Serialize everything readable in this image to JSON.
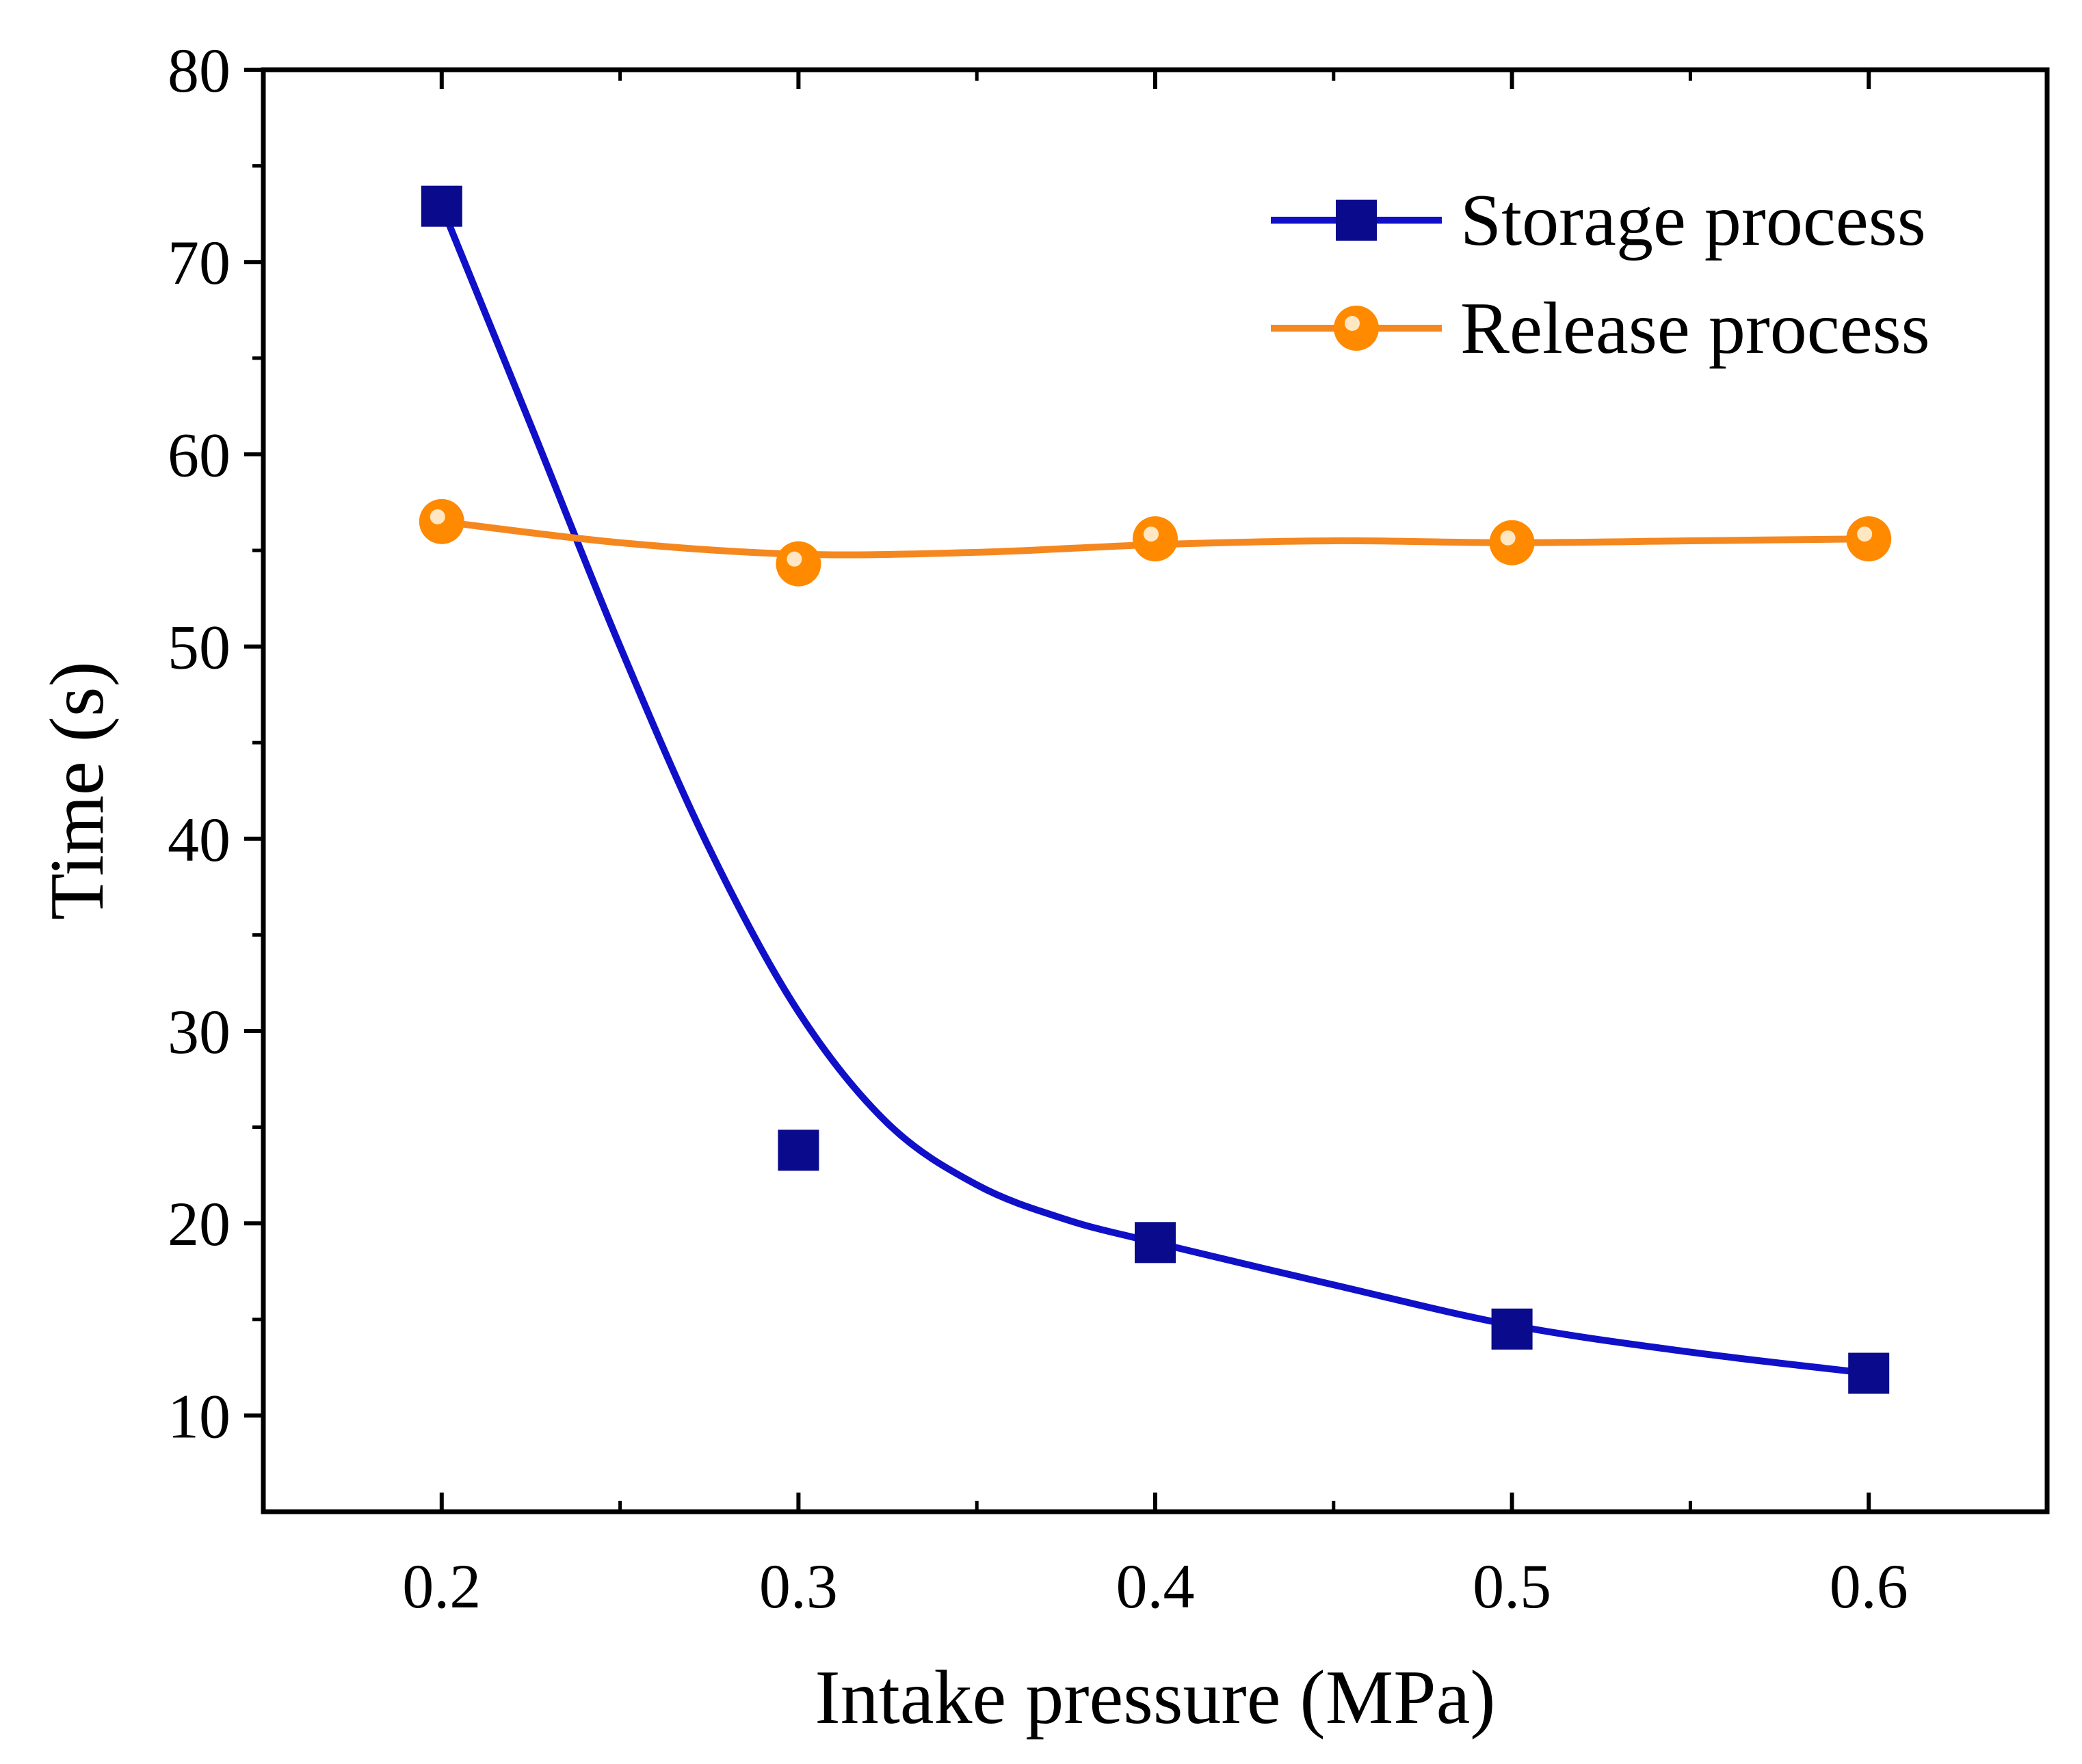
{
  "chart_data": {
    "type": "line",
    "title": "",
    "xlabel": "Intake pressure (MPa)",
    "ylabel": "Time (s)",
    "xlim": [
      0.15,
      0.65
    ],
    "ylim": [
      5,
      80
    ],
    "x_ticks": [
      0.2,
      0.3,
      0.4,
      0.5,
      0.6
    ],
    "x_tick_labels": [
      "0.2",
      "0.3",
      "0.4",
      "0.5",
      "0.6"
    ],
    "y_ticks": [
      10,
      20,
      30,
      40,
      50,
      60,
      70,
      80
    ],
    "y_tick_labels": [
      "10",
      "20",
      "30",
      "40",
      "50",
      "60",
      "70",
      "80"
    ],
    "grid": false,
    "legend_position": "top-right",
    "x": [
      0.2,
      0.3,
      0.4,
      0.5,
      0.6
    ],
    "series": [
      {
        "name": "Storage process",
        "marker": "square",
        "color": "#0a0a8c",
        "line_color": "#1010c8",
        "values": [
          72.9,
          23.8,
          19.0,
          14.5,
          12.2
        ],
        "fit_curve": {
          "x": [
            0.2,
            0.225,
            0.25,
            0.275,
            0.3,
            0.325,
            0.35,
            0.375,
            0.4,
            0.45,
            0.5,
            0.55,
            0.6
          ],
          "y": [
            72.9,
            61.5,
            50.0,
            39.5,
            31.0,
            25.2,
            22.0,
            20.2,
            19.0,
            16.8,
            14.7,
            13.3,
            12.2
          ]
        }
      },
      {
        "name": "Release process",
        "marker": "circle",
        "color": "#ff8a00",
        "line_color": "#f5871f",
        "values": [
          56.5,
          54.3,
          55.6,
          55.4,
          55.6
        ],
        "fit_curve": {
          "x": [
            0.2,
            0.25,
            0.3,
            0.35,
            0.4,
            0.45,
            0.5,
            0.55,
            0.6
          ],
          "y": [
            56.5,
            55.4,
            54.8,
            54.9,
            55.3,
            55.5,
            55.4,
            55.5,
            55.6
          ]
        }
      }
    ]
  }
}
